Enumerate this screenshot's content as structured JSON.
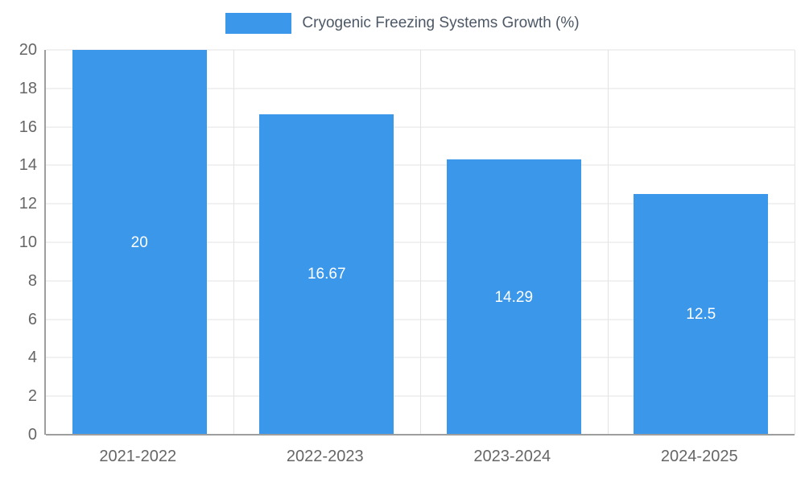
{
  "chart_data": {
    "type": "bar",
    "title": "Cryogenic Freezing Systems Growth (%)",
    "categories": [
      "2021-2022",
      "2022-2023",
      "2023-2024",
      "2024-2025"
    ],
    "values": [
      20,
      16.67,
      14.29,
      12.5
    ],
    "value_labels": [
      "20",
      "16.67",
      "14.29",
      "12.5"
    ],
    "ylim": [
      0,
      20
    ],
    "yticks": [
      0,
      2,
      4,
      6,
      8,
      10,
      12,
      14,
      16,
      18,
      20
    ],
    "grid": true,
    "legend_position": "top-center",
    "colors": {
      "bar": "#3b97ea",
      "grid": "#e3e3e3",
      "axis": "#9e9e9e",
      "tick_label": "#666666",
      "title": "#4d5866",
      "value_label": "#ffffff"
    }
  }
}
